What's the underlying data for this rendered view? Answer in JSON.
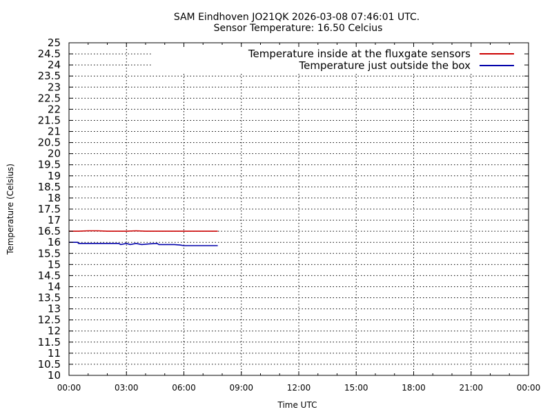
{
  "chart_data": {
    "type": "line",
    "title": "SAM Eindhoven JO21QK 2026-03-08 07:46:01 UTC.",
    "subtitle": "Sensor Temperature: 16.50 Celcius",
    "xlabel": "Time UTC",
    "ylabel": "Temperature (Celsius)",
    "xlim": [
      0,
      24
    ],
    "ylim": [
      10,
      25
    ],
    "x_ticks": [
      "00:00",
      "03:00",
      "06:00",
      "09:00",
      "12:00",
      "15:00",
      "18:00",
      "21:00",
      "00:00"
    ],
    "y_ticks": [
      "10",
      "10.5",
      "11",
      "11.5",
      "12",
      "12.5",
      "13",
      "13.5",
      "14",
      "14.5",
      "15",
      "15.5",
      "16",
      "16.5",
      "17",
      "17.5",
      "18",
      "18.5",
      "19",
      "19.5",
      "20",
      "20.5",
      "21",
      "21.5",
      "22",
      "22.5",
      "23",
      "23.5",
      "24",
      "24.5",
      "25"
    ],
    "grid": true,
    "legend_position": "top-right",
    "series": [
      {
        "name": "Temperature inside at the fluxgate sensors",
        "color": "#cc0000",
        "x": [
          0,
          0.5,
          1.0,
          1.5,
          2.0,
          2.5,
          3.0,
          3.5,
          4.0,
          4.5,
          5.0,
          5.5,
          6.0,
          6.5,
          7.0,
          7.77
        ],
        "y": [
          16.5,
          16.5,
          16.52,
          16.52,
          16.5,
          16.5,
          16.5,
          16.52,
          16.5,
          16.5,
          16.5,
          16.5,
          16.5,
          16.5,
          16.5,
          16.5
        ]
      },
      {
        "name": "Temperature just outside the box",
        "color": "#0000aa",
        "x": [
          0,
          0.45,
          0.5,
          1.0,
          2.0,
          2.6,
          2.7,
          3.0,
          3.2,
          3.5,
          3.8,
          4.2,
          4.6,
          4.7,
          5.0,
          5.5,
          5.8,
          6.0,
          6.5,
          7.0,
          7.77
        ],
        "y": [
          16.0,
          16.0,
          15.95,
          15.95,
          15.95,
          15.95,
          15.9,
          15.95,
          15.9,
          15.95,
          15.9,
          15.93,
          15.95,
          15.9,
          15.9,
          15.9,
          15.88,
          15.85,
          15.85,
          15.85,
          15.85
        ]
      }
    ]
  }
}
